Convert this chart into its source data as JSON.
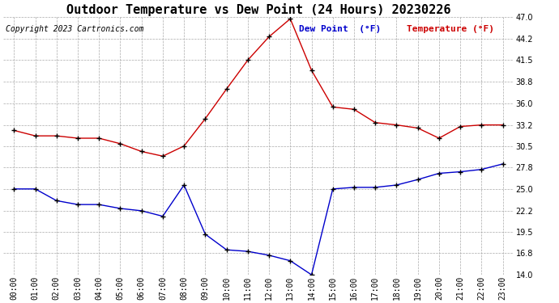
{
  "title": "Outdoor Temperature vs Dew Point (24 Hours) 20230226",
  "copyright": "Copyright 2023 Cartronics.com",
  "legend_dew": "Dew Point  (°F)",
  "legend_temp": "Temperature (°F)",
  "hours": [
    "00:00",
    "01:00",
    "02:00",
    "03:00",
    "04:00",
    "05:00",
    "06:00",
    "07:00",
    "08:00",
    "09:00",
    "10:00",
    "11:00",
    "12:00",
    "13:00",
    "14:00",
    "15:00",
    "16:00",
    "17:00",
    "18:00",
    "19:00",
    "20:00",
    "21:00",
    "22:00",
    "23:00"
  ],
  "temperature": [
    32.5,
    31.8,
    31.8,
    31.5,
    31.5,
    30.8,
    29.8,
    29.2,
    30.5,
    34.0,
    37.8,
    41.5,
    44.5,
    46.8,
    40.2,
    35.5,
    35.2,
    33.5,
    33.2,
    32.8,
    31.5,
    33.0,
    33.2,
    33.2
  ],
  "dew_point": [
    25.0,
    25.0,
    23.5,
    23.0,
    23.0,
    22.5,
    22.2,
    21.5,
    25.5,
    19.2,
    17.2,
    17.0,
    16.5,
    15.8,
    14.0,
    25.0,
    25.2,
    25.2,
    25.5,
    26.2,
    27.0,
    27.2,
    27.5,
    28.2
  ],
  "ylim": [
    14.0,
    47.0
  ],
  "yticks": [
    14.0,
    16.8,
    19.5,
    22.2,
    25.0,
    27.8,
    30.5,
    33.2,
    36.0,
    38.8,
    41.5,
    44.2,
    47.0
  ],
  "temp_color": "#cc0000",
  "dew_color": "#0000cc",
  "background_color": "#ffffff",
  "grid_color": "#aaaaaa",
  "title_fontsize": 11,
  "tick_fontsize": 7,
  "copyright_fontsize": 7,
  "legend_fontsize": 8
}
